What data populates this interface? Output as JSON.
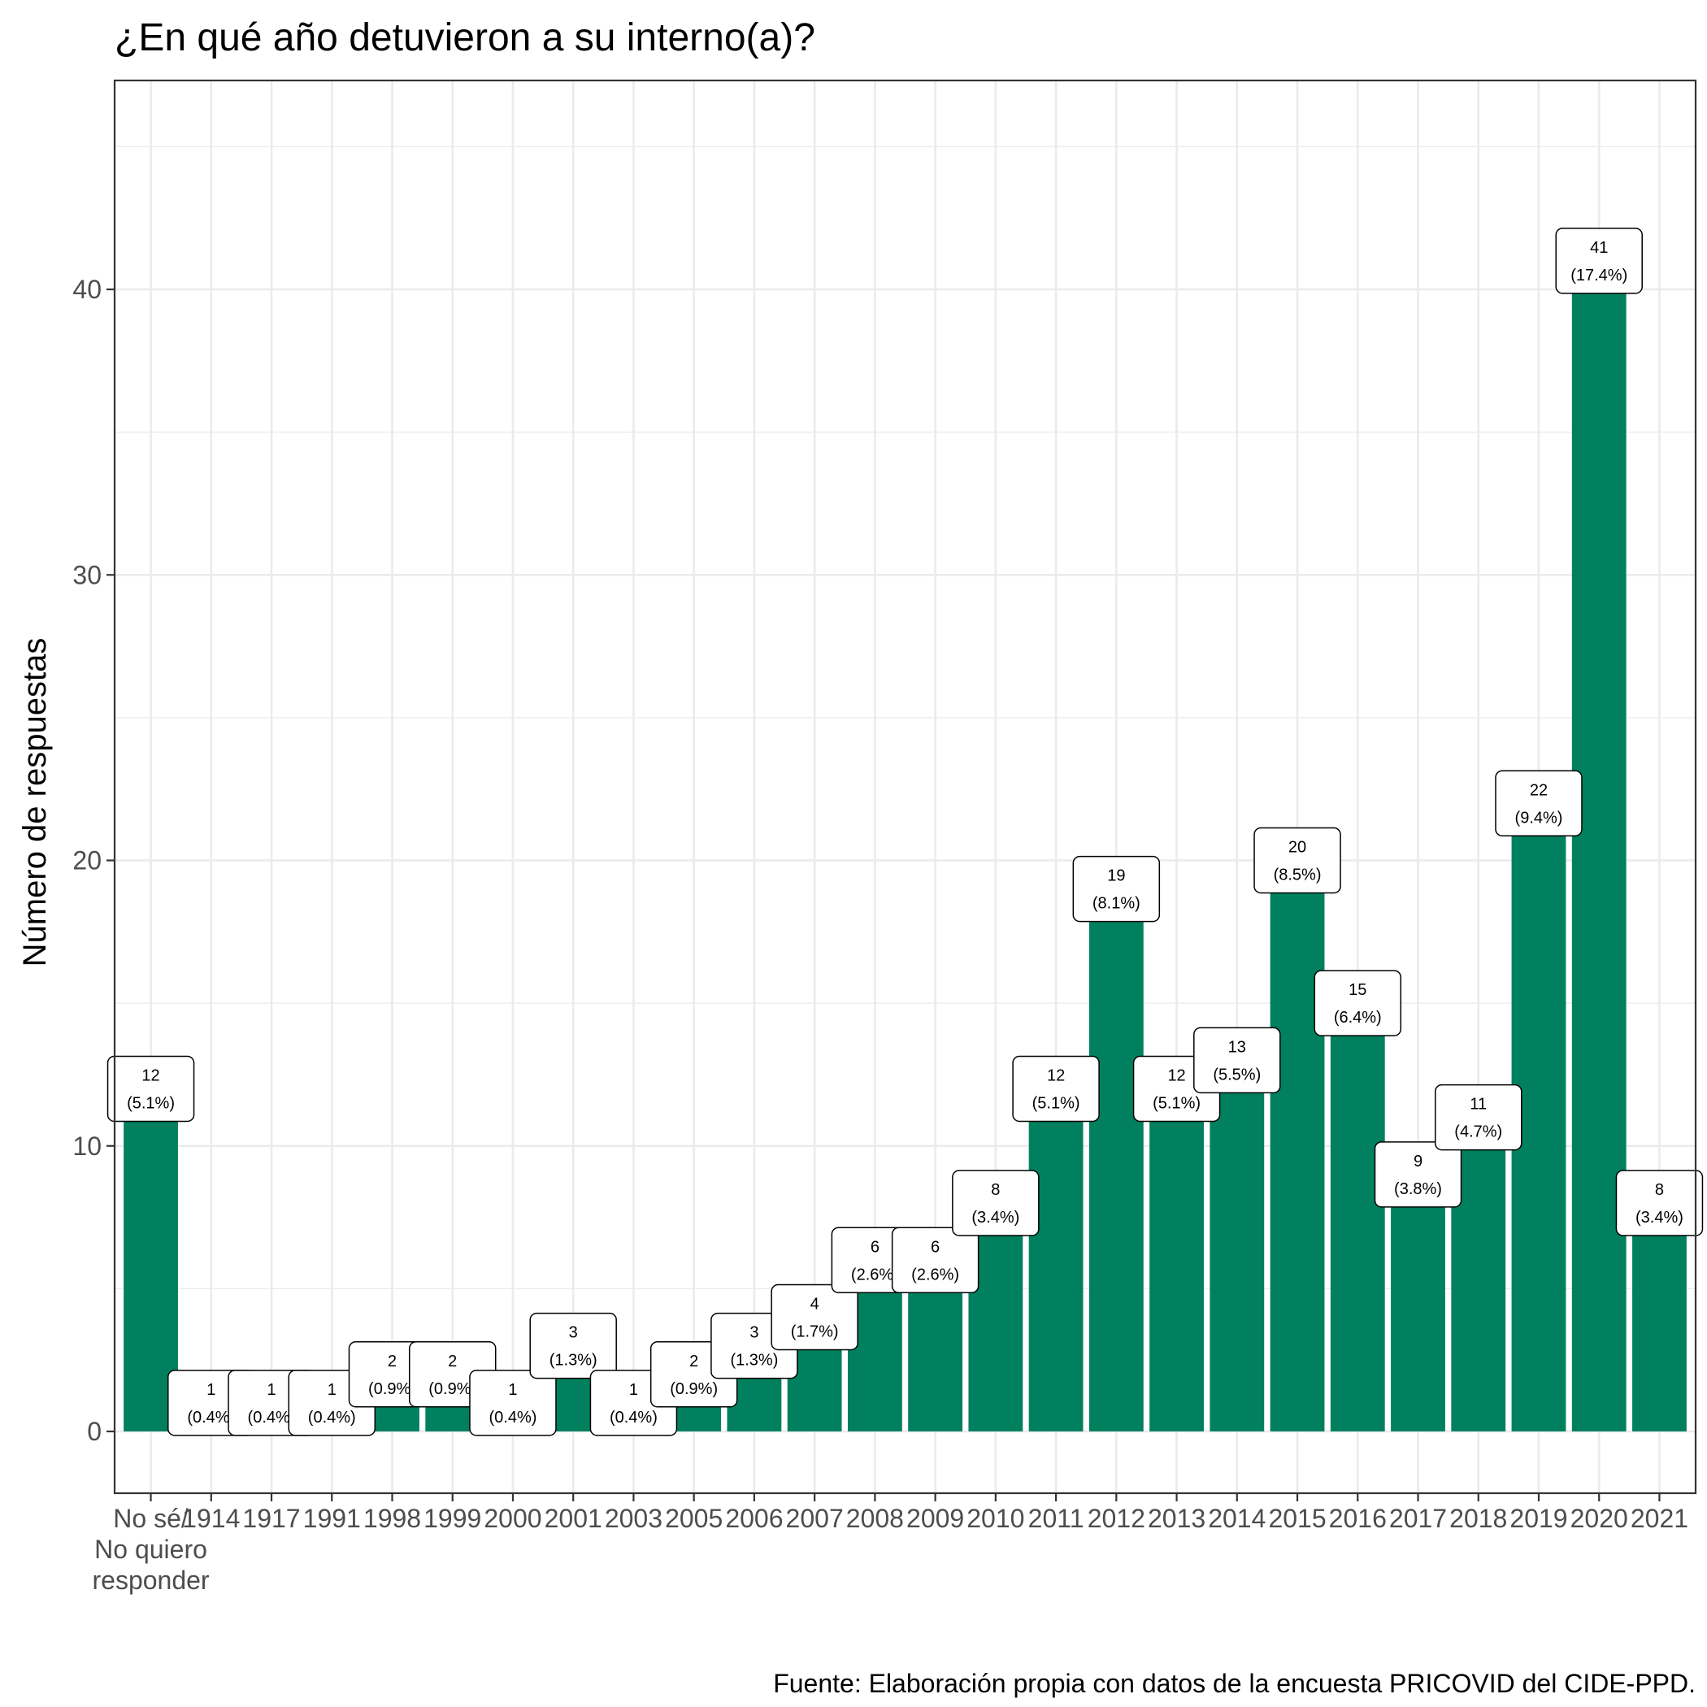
{
  "chart_data": {
    "type": "bar",
    "title": "¿En qué año detuvieron a su interno(a)?",
    "ylabel": "Número de respuestas",
    "xlabel": "",
    "caption": "Fuente: Elaboración propia con datos de la encuesta PRICOVID del CIDE-PPD.",
    "categories": [
      "No sé/\nNo quiero\nresponder",
      "1914",
      "1917",
      "1991",
      "1998",
      "1999",
      "2000",
      "2001",
      "2003",
      "2005",
      "2006",
      "2007",
      "2008",
      "2009",
      "2010",
      "2011",
      "2012",
      "2013",
      "2014",
      "2015",
      "2016",
      "2017",
      "2018",
      "2019",
      "2020",
      "2021"
    ],
    "values": [
      12,
      1,
      1,
      1,
      2,
      2,
      1,
      3,
      1,
      2,
      3,
      4,
      6,
      6,
      8,
      12,
      19,
      12,
      13,
      20,
      15,
      9,
      11,
      22,
      41,
      8
    ],
    "labels": [
      "12\n(5.1%)",
      "1\n(0.4%)",
      "1\n(0.4%)",
      "1\n(0.4%)",
      "2\n(0.9%)",
      "2\n(0.9%)",
      "1\n(0.4%)",
      "3\n(1.3%)",
      "1\n(0.4%)",
      "2\n(0.9%)",
      "3\n(1.3%)",
      "4\n(1.7%)",
      "6\n(2.6%)",
      "6\n(2.6%)",
      "8\n(3.4%)",
      "12\n(5.1%)",
      "19\n(8.1%)",
      "12\n(5.1%)",
      "13\n(5.5%)",
      "20\n(8.5%)",
      "15\n(6.4%)",
      "9\n(3.8%)",
      "11\n(4.7%)",
      "22\n(9.4%)",
      "41\n(17.4%)",
      "8\n(3.4%)"
    ],
    "yticks": [
      0,
      10,
      20,
      30,
      40
    ],
    "ylim": [
      -2.2,
      46.2
    ],
    "bar_color": "#00805e",
    "grid": true,
    "legend": "none"
  }
}
